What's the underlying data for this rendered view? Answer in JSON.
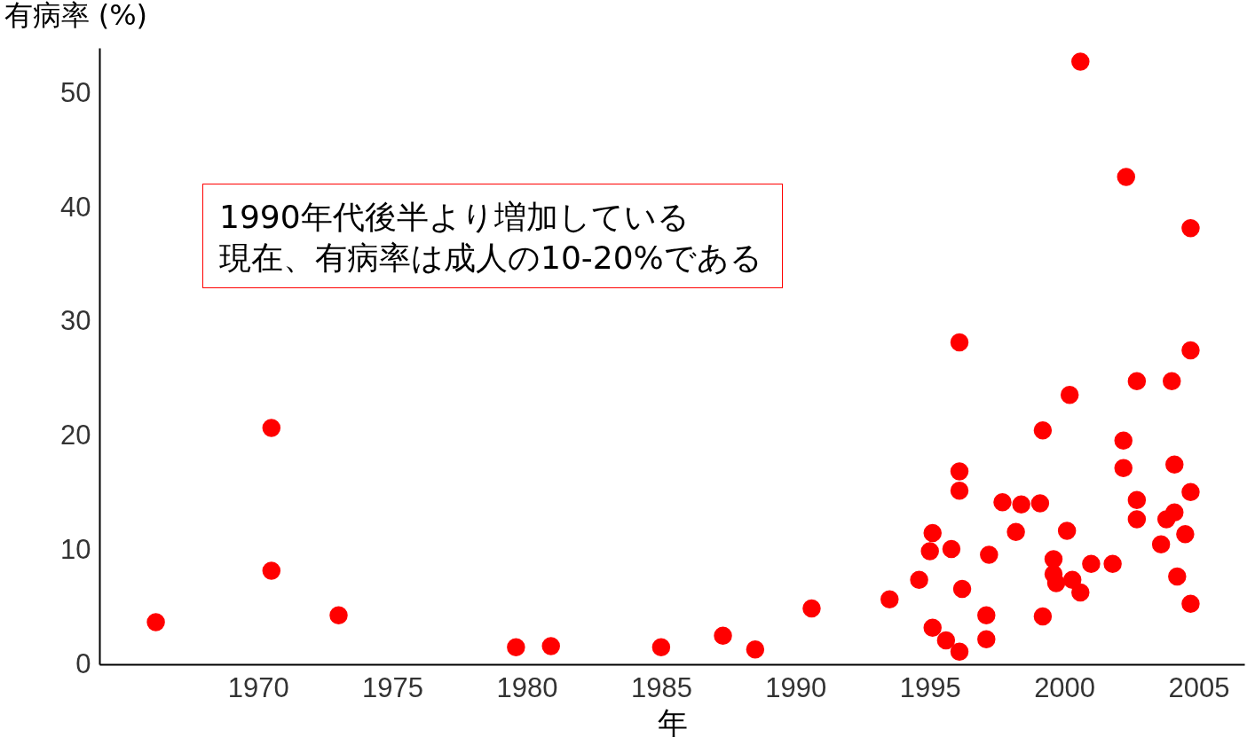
{
  "chart_data": {
    "type": "scatter",
    "xlabel": "年",
    "ylabel": "有病率 (%)",
    "annotations": [
      "1990年代後半より増加している",
      "現在、有病率は成人の10-20%である"
    ],
    "x": [
      1966.2,
      1970.5,
      1970.5,
      1973.0,
      1979.6,
      1980.9,
      1985.0,
      1987.3,
      1988.5,
      1990.6,
      1993.5,
      1994.6,
      1995.1,
      1995.0,
      1995.1,
      1995.6,
      1996.1,
      1995.8,
      1996.1,
      1996.1,
      1996.1,
      1996.2,
      1997.1,
      1997.1,
      1997.2,
      1997.7,
      1998.4,
      1998.2,
      1999.1,
      1999.2,
      1999.2,
      1999.6,
      1999.6,
      1999.7,
      2000.1,
      2000.2,
      2000.3,
      2000.6,
      2001.0,
      2000.6,
      2001.8,
      2002.2,
      2002.2,
      2002.3,
      2002.7,
      2002.7,
      2002.7,
      2003.6,
      2003.8,
      2004.1,
      2004.0,
      2004.1,
      2004.2,
      2004.5,
      2004.7,
      2004.7,
      2004.7,
      2004.7
    ],
    "series": [
      {
        "color": "#ff0000",
        "values": [
          3.7,
          20.7,
          8.2,
          4.3,
          1.5,
          1.6,
          1.5,
          2.5,
          1.3,
          4.9,
          5.7,
          7.4,
          11.5,
          9.9,
          3.2,
          2.1,
          1.1,
          10.1,
          28.2,
          16.9,
          15.2,
          6.6,
          4.3,
          2.2,
          9.6,
          14.2,
          14.0,
          11.6,
          14.1,
          4.2,
          20.5,
          9.2,
          7.9,
          7.1,
          11.7,
          23.6,
          7.4,
          6.3,
          8.8,
          52.8,
          8.8,
          19.6,
          17.2,
          42.7,
          14.4,
          12.7,
          24.8,
          10.5,
          12.7,
          13.3,
          24.8,
          17.5,
          7.7,
          11.4,
          15.1,
          5.3,
          38.2,
          27.5
        ]
      }
    ],
    "marker": "circle",
    "xlim": [
      1964.1,
      2006.7
    ],
    "xticks": [
      1970,
      1975,
      1980,
      1985,
      1990,
      1995,
      2000,
      2005
    ],
    "ylim": [
      0,
      54
    ],
    "yticks": [
      0,
      10,
      20,
      30,
      40,
      50
    ]
  }
}
